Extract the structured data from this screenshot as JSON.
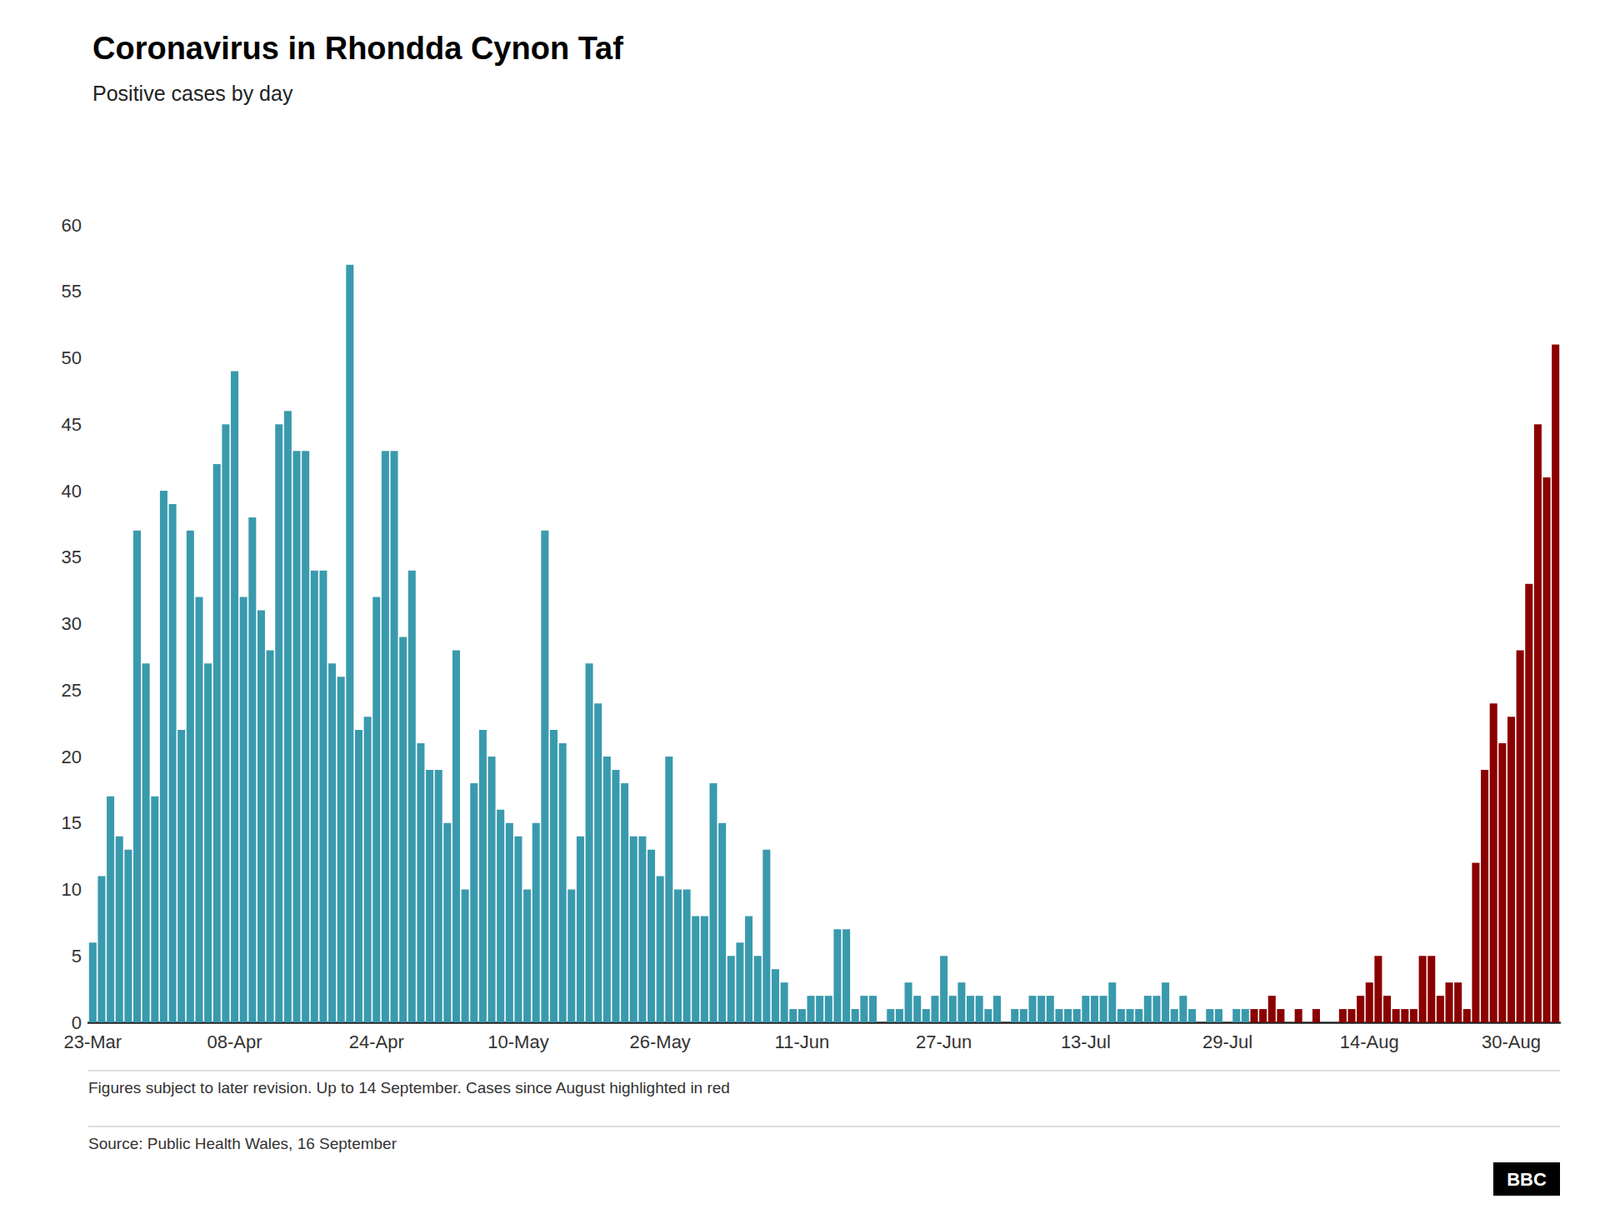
{
  "chart_data": {
    "type": "bar",
    "title": "Coronavirus in Rhondda Cynon Taf",
    "subtitle": "Positive cases by day",
    "annotations": [
      "Figures subject to later revision. Up to 14 September. Cases since August highlighted in red",
      "Source: Public Health Wales, 16 September",
      "BBC"
    ],
    "categories": [
      "23-Mar",
      null,
      null,
      null,
      null,
      null,
      null,
      null,
      null,
      null,
      null,
      null,
      null,
      null,
      null,
      null,
      "08-Apr",
      null,
      null,
      null,
      null,
      null,
      null,
      null,
      null,
      null,
      null,
      null,
      null,
      null,
      null,
      null,
      "24-Apr",
      null,
      null,
      null,
      null,
      null,
      null,
      null,
      null,
      null,
      null,
      null,
      null,
      null,
      null,
      null,
      "10-May",
      null,
      null,
      null,
      null,
      null,
      null,
      null,
      null,
      null,
      null,
      null,
      null,
      null,
      null,
      null,
      "26-May",
      null,
      null,
      null,
      null,
      null,
      null,
      null,
      null,
      null,
      null,
      null,
      null,
      null,
      null,
      null,
      "11-Jun",
      null,
      null,
      null,
      null,
      null,
      null,
      null,
      null,
      null,
      null,
      null,
      null,
      null,
      null,
      null,
      "27-Jun",
      null,
      null,
      null,
      null,
      null,
      null,
      null,
      null,
      null,
      null,
      null,
      null,
      null,
      null,
      null,
      "13-Jul",
      null,
      null,
      null,
      null,
      null,
      null,
      null,
      null,
      null,
      null,
      null,
      null,
      null,
      null,
      null,
      "29-Jul",
      null,
      null,
      null,
      null,
      null,
      null,
      null,
      null,
      null,
      null,
      null,
      null,
      null,
      null,
      null,
      "14-Aug",
      null,
      null,
      null,
      null,
      null,
      null,
      null,
      null,
      null,
      null,
      null,
      null,
      null,
      null,
      null,
      "30-Aug",
      null,
      null,
      null,
      null,
      null
    ],
    "values": [
      6,
      11,
      17,
      14,
      13,
      37,
      27,
      17,
      40,
      39,
      22,
      37,
      32,
      27,
      42,
      45,
      49,
      32,
      38,
      31,
      28,
      45,
      46,
      43,
      43,
      34,
      34,
      27,
      26,
      57,
      22,
      23,
      32,
      43,
      43,
      29,
      34,
      21,
      19,
      19,
      15,
      28,
      10,
      18,
      22,
      20,
      16,
      15,
      14,
      10,
      15,
      37,
      22,
      21,
      10,
      14,
      27,
      24,
      20,
      19,
      18,
      14,
      14,
      13,
      11,
      20,
      10,
      10,
      8,
      8,
      18,
      15,
      5,
      6,
      8,
      5,
      13,
      4,
      3,
      1,
      1,
      2,
      2,
      2,
      7,
      7,
      1,
      2,
      2,
      0,
      1,
      1,
      3,
      2,
      1,
      2,
      5,
      2,
      3,
      2,
      2,
      1,
      2,
      0,
      1,
      1,
      2,
      2,
      2,
      1,
      1,
      1,
      2,
      2,
      2,
      3,
      1,
      1,
      1,
      2,
      2,
      3,
      1,
      2,
      1,
      0,
      1,
      1,
      0,
      1,
      1,
      1,
      1,
      2,
      1,
      0,
      1,
      0,
      1,
      0,
      0,
      1,
      1,
      2,
      3,
      5,
      2,
      1,
      1,
      1,
      5,
      5,
      2,
      3,
      3,
      1,
      12,
      19,
      24,
      21,
      23,
      28,
      33,
      45,
      41,
      51
    ],
    "colors": [
      "#3a9aad",
      "#3a9aad",
      "#3a9aad",
      "#3a9aad",
      "#3a9aad",
      "#3a9aad",
      "#3a9aad",
      "#3a9aad",
      "#3a9aad",
      "#3a9aad",
      "#3a9aad",
      "#3a9aad",
      "#3a9aad",
      "#3a9aad",
      "#3a9aad",
      "#3a9aad",
      "#3a9aad",
      "#3a9aad",
      "#3a9aad",
      "#3a9aad",
      "#3a9aad",
      "#3a9aad",
      "#3a9aad",
      "#3a9aad",
      "#3a9aad",
      "#3a9aad",
      "#3a9aad",
      "#3a9aad",
      "#3a9aad",
      "#3a9aad",
      "#3a9aad",
      "#3a9aad",
      "#3a9aad",
      "#3a9aad",
      "#3a9aad",
      "#3a9aad",
      "#3a9aad",
      "#3a9aad",
      "#3a9aad",
      "#3a9aad",
      "#3a9aad",
      "#3a9aad",
      "#3a9aad",
      "#3a9aad",
      "#3a9aad",
      "#3a9aad",
      "#3a9aad",
      "#3a9aad",
      "#3a9aad",
      "#3a9aad",
      "#3a9aad",
      "#3a9aad",
      "#3a9aad",
      "#3a9aad",
      "#3a9aad",
      "#3a9aad",
      "#3a9aad",
      "#3a9aad",
      "#3a9aad",
      "#3a9aad",
      "#3a9aad",
      "#3a9aad",
      "#3a9aad",
      "#3a9aad",
      "#3a9aad",
      "#3a9aad",
      "#3a9aad",
      "#3a9aad",
      "#3a9aad",
      "#3a9aad",
      "#3a9aad",
      "#3a9aad",
      "#3a9aad",
      "#3a9aad",
      "#3a9aad",
      "#3a9aad",
      "#3a9aad",
      "#3a9aad",
      "#3a9aad",
      "#3a9aad",
      "#3a9aad",
      "#3a9aad",
      "#3a9aad",
      "#3a9aad",
      "#3a9aad",
      "#3a9aad",
      "#3a9aad",
      "#3a9aad",
      "#3a9aad",
      "#3a9aad",
      "#3a9aad",
      "#3a9aad",
      "#3a9aad",
      "#3a9aad",
      "#3a9aad",
      "#3a9aad",
      "#3a9aad",
      "#3a9aad",
      "#3a9aad",
      "#3a9aad",
      "#3a9aad",
      "#3a9aad",
      "#3a9aad",
      "#3a9aad",
      "#3a9aad",
      "#3a9aad",
      "#3a9aad",
      "#3a9aad",
      "#3a9aad",
      "#3a9aad",
      "#3a9aad",
      "#3a9aad",
      "#3a9aad",
      "#3a9aad",
      "#3a9aad",
      "#3a9aad",
      "#3a9aad",
      "#3a9aad",
      "#3a9aad",
      "#3a9aad",
      "#3a9aad",
      "#3a9aad",
      "#3a9aad",
      "#3a9aad",
      "#3a9aad",
      "#3a9aad",
      "#3a9aad",
      "#3a9aad",
      "#3a9aad",
      "#3a9aad",
      "#3a9aad",
      "#8B0000",
      "#8B0000",
      "#8B0000",
      "#8B0000",
      "#8B0000",
      "#8B0000",
      "#8B0000",
      "#8B0000",
      "#8B0000",
      "#8B0000",
      "#8B0000",
      "#8B0000",
      "#8B0000",
      "#8B0000",
      "#8B0000",
      "#8B0000",
      "#8B0000",
      "#8B0000",
      "#8B0000",
      "#8B0000",
      "#8B0000",
      "#8B0000",
      "#8B0000",
      "#8B0000",
      "#8B0000",
      "#8B0000",
      "#8B0000",
      "#8B0000",
      "#8B0000",
      "#8B0000",
      "#8B0000",
      "#8B0000",
      "#8B0000",
      "#8B0000",
      "#8B0000"
    ],
    "ylim": [
      0,
      60
    ],
    "yticks": [
      0,
      5,
      10,
      15,
      20,
      25,
      30,
      35,
      40,
      45,
      50,
      55,
      60
    ],
    "grid": false
  }
}
